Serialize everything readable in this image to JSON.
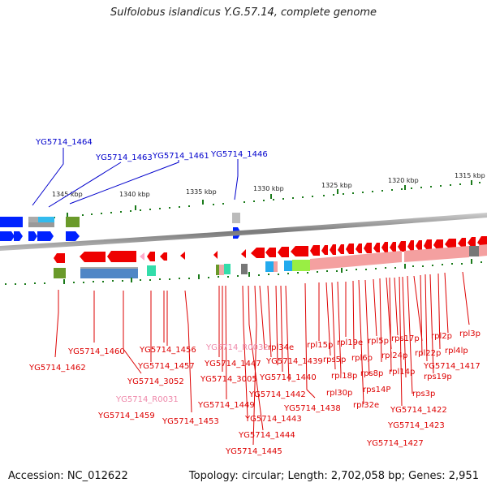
{
  "title": "Sulfolobus islandicus Y.G.57.14, complete genome",
  "footer": {
    "accession": "Accession: NC_012622",
    "summary": "Topology: circular; Length: 2,702,058 bp; Genes: 2,951"
  },
  "scale_ticks": [
    "1345 kbp",
    "1340 kbp",
    "1335 kbp",
    "1330 kbp",
    "1325 kbp",
    "1320 kbp",
    "1315 kbp"
  ],
  "colors": {
    "forward_label": "#0000cc",
    "reverse_label": "#dd0000",
    "rna_label": "#ee88aa",
    "backbone": "#888888",
    "tick": "#1a7a1a"
  },
  "top_labels": [
    "YG5714_1464",
    "YG5714_1463",
    "YG5714_1461",
    "YG5714_1446"
  ],
  "bottom_labels": [
    "YG5714_1462",
    "YG5714_1460",
    "YG5714_1456",
    "YG5714_1457",
    "YG5714_3052",
    "YG5714_R0031",
    "YG5714_1459",
    "YG5714_1453",
    "YG5714_R0032",
    "YG5714_1447",
    "YG5714_3005",
    "YG5714_1449",
    "rpl34e",
    "YG5714_1439",
    "YG5714_1440",
    "YG5714_1442",
    "YG5714_1443",
    "YG5714_1444",
    "YG5714_1445",
    "rpl15p",
    "rps5p",
    "rpl18p",
    "rpl30p",
    "YG5714_1438",
    "rpl19e",
    "rpl6p",
    "rpl32e",
    "rpl5p",
    "rps8p",
    "rps14P",
    "rps17p",
    "rpl24p",
    "rpl14p",
    "rpl2p",
    "rpl22p",
    "rps19p",
    "rps3p",
    "YG5714_1422",
    "YG5714_1423",
    "YG5714_1427",
    "rpl3p",
    "rpl4lp",
    "YG5714_1417"
  ]
}
